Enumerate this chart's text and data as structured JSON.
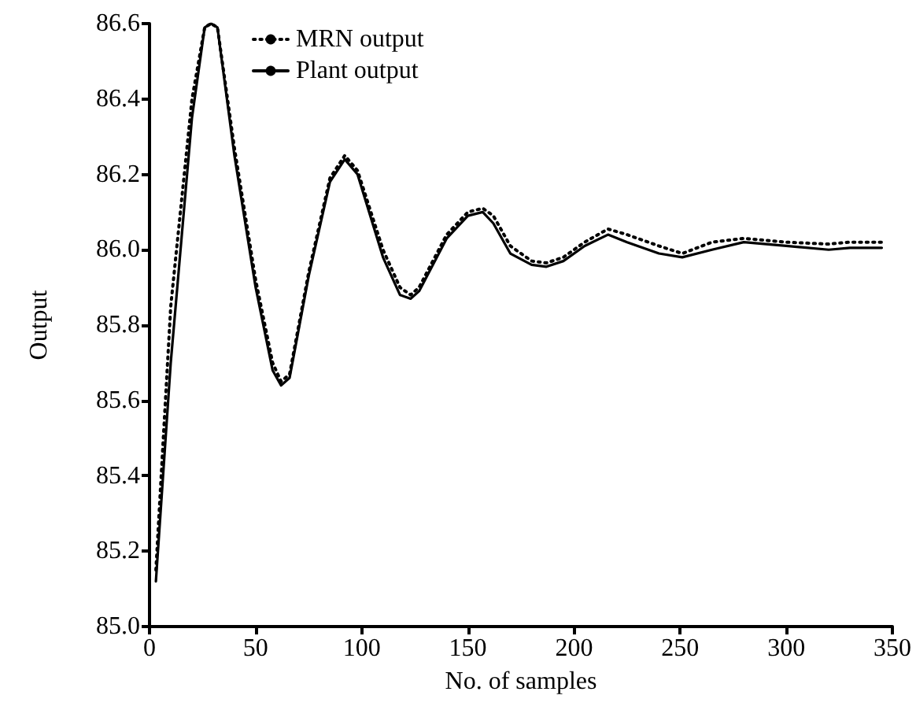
{
  "chart_data": {
    "type": "line",
    "xlabel": "No. of samples",
    "ylabel": "Output",
    "xlim": [
      0,
      350
    ],
    "xticks": [
      0,
      50,
      100,
      150,
      200,
      250,
      300,
      350
    ],
    "ylim": [
      85.0,
      86.6
    ],
    "yticks": [
      {
        "value": 85.0,
        "label": "85.0"
      },
      {
        "value": 85.2,
        "label": "85.2"
      },
      {
        "value": 85.4,
        "label": "85.4"
      },
      {
        "value": 85.6,
        "label": "85.6"
      },
      {
        "value": 85.8,
        "label": "85.8"
      },
      {
        "value": 86.0,
        "label": "86.0"
      },
      {
        "value": 86.2,
        "label": "86.2"
      },
      {
        "value": 86.4,
        "label": "86.4"
      },
      {
        "value": 86.6,
        "label": "86.6"
      }
    ],
    "grid": false,
    "legend": "top left",
    "marker": "none",
    "x": [
      3,
      10,
      20,
      26,
      29,
      32,
      40,
      50,
      58,
      62,
      66,
      75,
      85,
      92,
      98,
      110,
      118,
      123,
      127,
      140,
      150,
      157,
      162,
      170,
      180,
      187,
      195,
      205,
      216,
      225,
      240,
      251,
      265,
      280,
      300,
      320,
      330,
      345
    ],
    "series": [
      {
        "name": "MRN output",
        "color": "#000000",
        "line_style": "dotted",
        "values": [
          85.15,
          85.85,
          86.4,
          86.59,
          86.6,
          86.59,
          86.27,
          85.92,
          85.7,
          85.65,
          85.67,
          85.94,
          86.19,
          86.25,
          86.21,
          86.0,
          85.9,
          85.88,
          85.9,
          86.04,
          86.1,
          86.11,
          86.09,
          86.01,
          85.97,
          85.965,
          85.98,
          86.02,
          86.055,
          86.04,
          86.01,
          85.99,
          86.02,
          86.03,
          86.02,
          86.015,
          86.02,
          86.02
        ]
      },
      {
        "name": "Plant output",
        "color": "#000000",
        "line_style": "solid",
        "values": [
          85.12,
          85.7,
          86.35,
          86.59,
          86.6,
          86.59,
          86.25,
          85.9,
          85.68,
          85.64,
          85.66,
          85.93,
          86.18,
          86.24,
          86.2,
          85.98,
          85.88,
          85.87,
          85.89,
          86.03,
          86.09,
          86.1,
          86.07,
          85.99,
          85.96,
          85.955,
          85.97,
          86.01,
          86.04,
          86.02,
          85.99,
          85.98,
          86.0,
          86.02,
          86.01,
          86.0,
          86.005,
          86.005
        ]
      }
    ]
  }
}
